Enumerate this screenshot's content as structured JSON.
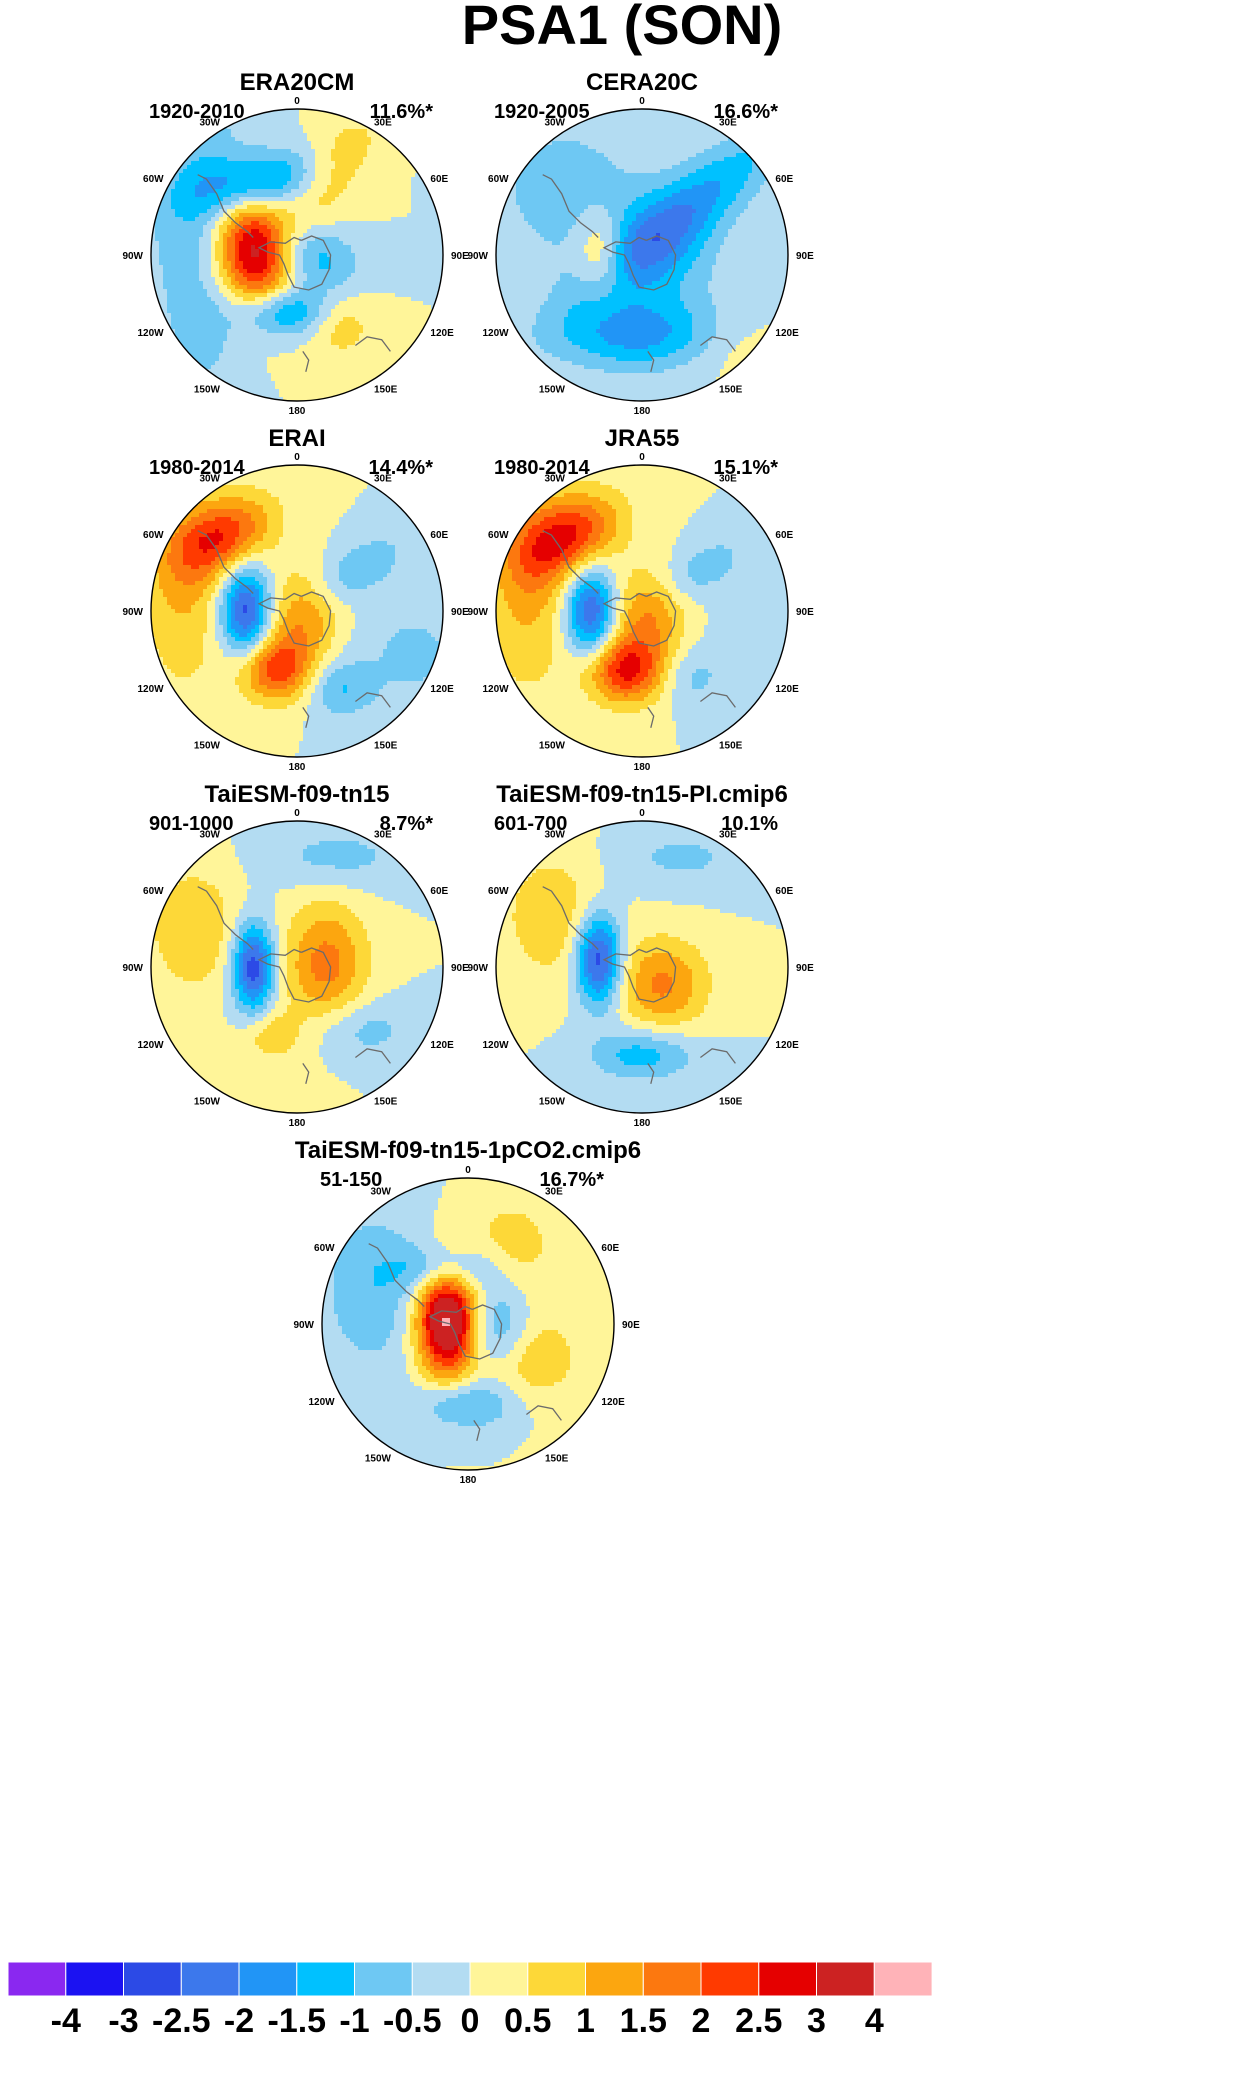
{
  "title": "PSA1 (SON)",
  "chart_data": {
    "type": "heatmap",
    "projection": "south polar stereographic",
    "longitude_labels": [
      "0",
      "30E",
      "60E",
      "90E",
      "120E",
      "150E",
      "180",
      "150W",
      "120W",
      "90W",
      "60W",
      "30W"
    ],
    "panels": [
      {
        "name": "ERA20CM",
        "period": "1920-2010",
        "variance": "11.6%*",
        "blobs": [
          {
            "lon": -95,
            "r": 0.3,
            "v": 3.2,
            "sx": 0.17,
            "sy": 0.27,
            "rot": -10
          },
          {
            "lon": -12,
            "r": 0.4,
            "v": -1.8,
            "sx": 0.22,
            "sy": 0.12,
            "rot": 0
          },
          {
            "lon": 80,
            "r": 0.15,
            "v": -1.2,
            "sx": 0.22,
            "sy": 0.16,
            "rot": 30
          },
          {
            "lon": -155,
            "r": 0.55,
            "v": -1.9,
            "sx": 0.34,
            "sy": 0.14,
            "rot": -10
          },
          {
            "lon": -120,
            "r": 0.8,
            "v": -0.9,
            "sx": 0.22,
            "sy": 0.55,
            "rot": 10
          },
          {
            "lon": 158,
            "r": 0.58,
            "v": 1.2,
            "sx": 0.16,
            "sy": 0.32,
            "rot": 40
          },
          {
            "lon": 32,
            "r": 0.55,
            "v": 0.9,
            "sx": 0.17,
            "sy": 0.17,
            "rot": 0
          },
          {
            "lon": -48,
            "r": 0.85,
            "v": -0.6,
            "sx": 0.18,
            "sy": 0.3,
            "rot": 0
          }
        ]
      },
      {
        "name": "CERA20C",
        "period": "1920-2005",
        "variance": "16.6%*",
        "blobs": [
          {
            "lon": -90,
            "r": 0.28,
            "v": 1.4,
            "sx": 0.12,
            "sy": 0.2,
            "rot": 0
          },
          {
            "lon": -5,
            "r": 0.55,
            "v": -1.6,
            "sx": 0.38,
            "sy": 0.17,
            "rot": 0
          },
          {
            "lon": 135,
            "r": 0.4,
            "v": -1.6,
            "sx": 0.62,
            "sy": 0.16,
            "rot": -40
          },
          {
            "lon": 80,
            "r": 0.1,
            "v": -1.0,
            "sx": 0.3,
            "sy": 0.3,
            "rot": 0
          },
          {
            "lon": -130,
            "r": 0.7,
            "v": -0.7,
            "sx": 0.4,
            "sy": 0.4,
            "rot": 0
          },
          {
            "lon": 45,
            "r": 0.95,
            "v": 0.3,
            "sx": 0.25,
            "sy": 0.15,
            "rot": 0
          }
        ]
      },
      {
        "name": "ERAI",
        "period": "1980-2014",
        "variance": "14.4%*",
        "blobs": [
          {
            "lon": -90,
            "r": 0.35,
            "v": -2.8,
            "sx": 0.12,
            "sy": 0.22,
            "rot": 0
          },
          {
            "lon": -20,
            "r": 0.42,
            "v": 2.3,
            "sx": 0.18,
            "sy": 0.16,
            "rot": 0
          },
          {
            "lon": -135,
            "r": 0.72,
            "v": 2.3,
            "sx": 0.26,
            "sy": 0.17,
            "rot": -30
          },
          {
            "lon": 60,
            "r": 0.05,
            "v": 1.4,
            "sx": 0.18,
            "sy": 0.22,
            "rot": 0
          },
          {
            "lon": 125,
            "r": 0.5,
            "v": -0.9,
            "sx": 0.26,
            "sy": 0.12,
            "rot": -30
          },
          {
            "lon": 28,
            "r": 0.6,
            "v": -1.0,
            "sx": 0.16,
            "sy": 0.14,
            "rot": 0
          },
          {
            "lon": -100,
            "r": 0.8,
            "v": 1.0,
            "sx": 0.2,
            "sy": 0.5,
            "rot": 0
          },
          {
            "lon": 70,
            "r": 0.85,
            "v": -0.6,
            "sx": 0.3,
            "sy": 0.3,
            "rot": 0
          }
        ]
      },
      {
        "name": "JRA55",
        "period": "1980-2014",
        "variance": "15.1%*",
        "blobs": [
          {
            "lon": -90,
            "r": 0.35,
            "v": -2.6,
            "sx": 0.12,
            "sy": 0.22,
            "rot": 0
          },
          {
            "lon": -15,
            "r": 0.42,
            "v": 2.6,
            "sx": 0.19,
            "sy": 0.16,
            "rot": 0
          },
          {
            "lon": -135,
            "r": 0.72,
            "v": 2.5,
            "sx": 0.27,
            "sy": 0.18,
            "rot": -30
          },
          {
            "lon": 60,
            "r": 0.05,
            "v": 1.5,
            "sx": 0.18,
            "sy": 0.22,
            "rot": 0
          },
          {
            "lon": 125,
            "r": 0.5,
            "v": -0.8,
            "sx": 0.24,
            "sy": 0.12,
            "rot": -30
          },
          {
            "lon": 35,
            "r": 0.55,
            "v": -0.7,
            "sx": 0.16,
            "sy": 0.14,
            "rot": 0
          },
          {
            "lon": -100,
            "r": 0.8,
            "v": 1.1,
            "sx": 0.2,
            "sy": 0.5,
            "rot": 0
          },
          {
            "lon": 75,
            "r": 0.9,
            "v": -0.5,
            "sx": 0.25,
            "sy": 0.25,
            "rot": 0
          }
        ]
      },
      {
        "name": "TaiESM-f09-tn15",
        "period": "901-1000",
        "variance": "8.7%*",
        "blobs": [
          {
            "lon": -90,
            "r": 0.3,
            "v": -2.9,
            "sx": 0.1,
            "sy": 0.21,
            "rot": 0
          },
          {
            "lon": 95,
            "r": 0.2,
            "v": 1.7,
            "sx": 0.2,
            "sy": 0.3,
            "rot": 0
          },
          {
            "lon": -110,
            "r": 0.75,
            "v": 1.0,
            "sx": 0.22,
            "sy": 0.3,
            "rot": 0
          },
          {
            "lon": -20,
            "r": 0.5,
            "v": 0.9,
            "sx": 0.14,
            "sy": 0.12,
            "rot": 0
          },
          {
            "lon": 160,
            "r": 0.8,
            "v": -0.7,
            "sx": 0.35,
            "sy": 0.15,
            "rot": 0
          },
          {
            "lon": 45,
            "r": 0.6,
            "v": -0.8,
            "sx": 0.25,
            "sy": 0.15,
            "rot": 0
          }
        ]
      },
      {
        "name": "TaiESM-f09-tn15-PI.cmip6",
        "period": "601-700",
        "variance": "10.1%",
        "blobs": [
          {
            "lon": -100,
            "r": 0.3,
            "v": -3.0,
            "sx": 0.11,
            "sy": 0.22,
            "rot": 0
          },
          {
            "lon": 50,
            "r": 0.18,
            "v": 1.6,
            "sx": 0.22,
            "sy": 0.22,
            "rot": 0
          },
          {
            "lon": -120,
            "r": 0.7,
            "v": 0.9,
            "sx": 0.25,
            "sy": 0.32,
            "rot": 0
          },
          {
            "lon": 0,
            "r": 0.6,
            "v": -1.3,
            "sx": 0.25,
            "sy": 0.12,
            "rot": 0
          },
          {
            "lon": 160,
            "r": 0.8,
            "v": -0.6,
            "sx": 0.35,
            "sy": 0.15,
            "rot": 0
          }
        ]
      },
      {
        "name": "TaiESM-f09-tn15-1pCO2.cmip6",
        "period": "51-150",
        "variance": "16.7%*",
        "blobs": [
          {
            "lon": -100,
            "r": 0.15,
            "v": 4.2,
            "sx": 0.14,
            "sy": 0.26,
            "rot": 0
          },
          {
            "lon": 80,
            "r": 0.22,
            "v": -1.4,
            "sx": 0.16,
            "sy": 0.22,
            "rot": 0
          },
          {
            "lon": -160,
            "r": 0.4,
            "v": -1.4,
            "sx": 0.24,
            "sy": 0.12,
            "rot": 0
          },
          {
            "lon": -110,
            "r": 0.7,
            "v": -0.9,
            "sx": 0.25,
            "sy": 0.4,
            "rot": 0
          },
          {
            "lon": 0,
            "r": 0.55,
            "v": -1.2,
            "sx": 0.24,
            "sy": 0.12,
            "rot": 0
          },
          {
            "lon": 60,
            "r": 0.45,
            "v": 1.1,
            "sx": 0.25,
            "sy": 0.22,
            "rot": 0
          },
          {
            "lon": 150,
            "r": 0.6,
            "v": 0.8,
            "sx": 0.22,
            "sy": 0.25,
            "rot": 0
          }
        ]
      }
    ],
    "colorbar": {
      "ticks": [
        "-4",
        "-3",
        "-2.5",
        "-2",
        "-1.5",
        "-1",
        "-0.5",
        "0",
        "0.5",
        "1",
        "1.5",
        "2",
        "2.5",
        "3",
        "4"
      ],
      "levels": [
        -4,
        -3,
        -2.5,
        -2,
        -1.5,
        -1,
        -0.5,
        0,
        0.5,
        1,
        1.5,
        2,
        2.5,
        3,
        4
      ],
      "colors": [
        "#8a28f0",
        "#1b12f2",
        "#2c4ae6",
        "#3c78ec",
        "#2195f6",
        "#00c1ff",
        "#6ec8f3",
        "#b3dcf2",
        "#fff599",
        "#fdd838",
        "#fca60f",
        "#fc780f",
        "#ff3a00",
        "#e50000",
        "#cc2222",
        "#ffb3b8"
      ]
    }
  }
}
